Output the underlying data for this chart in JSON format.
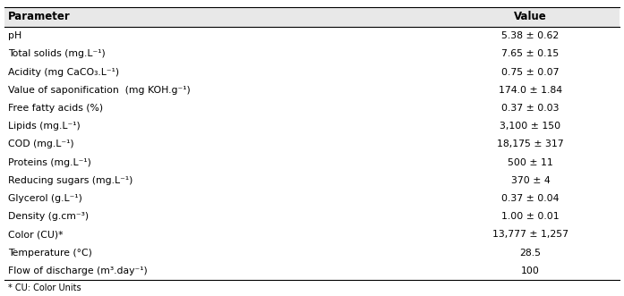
{
  "headers": [
    "Parameter",
    "Value"
  ],
  "rows": [
    [
      "pH",
      "5.38 ± 0.62"
    ],
    [
      "Total solids (mg.L⁻¹)",
      "7.65 ± 0.15"
    ],
    [
      "Acidity (mg CaCO₃.L⁻¹)",
      "0.75 ± 0.07"
    ],
    [
      "Value of saponification  (mg KOH.g⁻¹)",
      "174.0 ± 1.84"
    ],
    [
      "Free fatty acids (%)",
      "0.37 ± 0.03"
    ],
    [
      "Lipids (mg.L⁻¹)",
      "3,100 ± 150"
    ],
    [
      "COD (mg.L⁻¹)",
      "18,175 ± 317"
    ],
    [
      "Proteins (mg.L⁻¹)",
      "500 ± 11"
    ],
    [
      "Reducing sugars (mg.L⁻¹)",
      "370 ± 4"
    ],
    [
      "Glycerol (g.L⁻¹)",
      "0.37 ± 0.04"
    ],
    [
      "Density (g.cm⁻³)",
      "1.00 ± 0.01"
    ],
    [
      "Color (CU)*",
      "13,777 ± 1,257"
    ],
    [
      "Temperature (°C)",
      "28.5"
    ],
    [
      "Flow of discharge (m³.day⁻¹)",
      "100"
    ]
  ],
  "footnote": "* CU: Color Units",
  "header_fontsize": 8.5,
  "row_fontsize": 7.8,
  "footnote_fontsize": 7.0,
  "background_color": "#ffffff",
  "header_bg_color": "#e8e8e8",
  "line_color": "#000000",
  "col_split": 0.71
}
